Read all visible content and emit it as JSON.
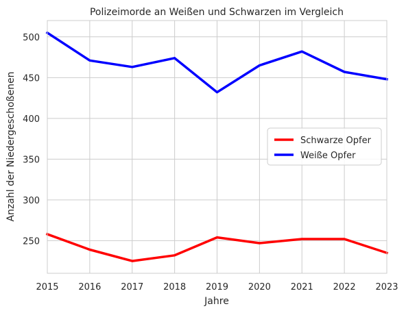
{
  "chart_data": {
    "type": "line",
    "title": "Polizeimorde an Weißen und Schwarzen im Vergleich",
    "xlabel": "Jahre",
    "ylabel": "Anzahl der Niedergeschoßenen",
    "x": [
      2015,
      2016,
      2017,
      2018,
      2019,
      2020,
      2021,
      2022,
      2023
    ],
    "xlim": [
      2015,
      2023
    ],
    "ylim": [
      210,
      520
    ],
    "yticks": [
      250,
      300,
      350,
      400,
      450,
      500
    ],
    "grid": true,
    "legend_position": "center-right",
    "series": [
      {
        "name": "Schwarze Opfer",
        "color": "#ff0000",
        "values": [
          258,
          239,
          225,
          232,
          254,
          247,
          252,
          252,
          235
        ]
      },
      {
        "name": "Weiße Opfer",
        "color": "#0000ff",
        "values": [
          505,
          471,
          463,
          474,
          432,
          465,
          482,
          457,
          448
        ]
      }
    ]
  }
}
